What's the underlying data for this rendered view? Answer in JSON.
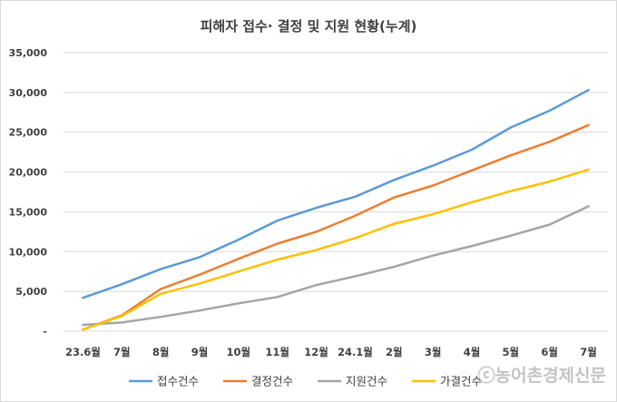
{
  "chart_data": {
    "type": "line",
    "title": "피해자 접수· 결정 및 지원 현황(누계)",
    "categories": [
      "23.6월",
      "7월",
      "8월",
      "9월",
      "10월",
      "11월",
      "12월",
      "24.1월",
      "2월",
      "3월",
      "4월",
      "5월",
      "6월",
      "7월"
    ],
    "y_ticks": [
      "-",
      "5,000",
      "10,000",
      "15,000",
      "20,000",
      "25,000",
      "30,000",
      "35,000"
    ],
    "ylim": [
      0,
      35000
    ],
    "grid": true,
    "legend_position": "bottom",
    "series": [
      {
        "name": "접수건수",
        "color": "#5b9bd5",
        "values": [
          4200,
          5900,
          7800,
          9300,
          11500,
          13900,
          15500,
          16900,
          19000,
          20800,
          22800,
          25600,
          27700,
          30300
        ]
      },
      {
        "name": "결정건수",
        "color": "#ed7d31",
        "values": [
          200,
          2000,
          5300,
          7100,
          9100,
          11000,
          12500,
          14500,
          16800,
          18300,
          20200,
          22100,
          23800,
          25900
        ]
      },
      {
        "name": "지원건수",
        "color": "#a5a5a5",
        "values": [
          800,
          1100,
          1800,
          2600,
          3500,
          4300,
          5800,
          6900,
          8100,
          9500,
          10700,
          12000,
          13400,
          15700
        ]
      },
      {
        "name": "가결건수",
        "color": "#ffc000",
        "values": [
          200,
          1900,
          4700,
          6000,
          7500,
          9000,
          10200,
          11700,
          13500,
          14700,
          16200,
          17600,
          18800,
          20300
        ]
      }
    ]
  },
  "watermark": "ⓒ농어촌경제신문"
}
